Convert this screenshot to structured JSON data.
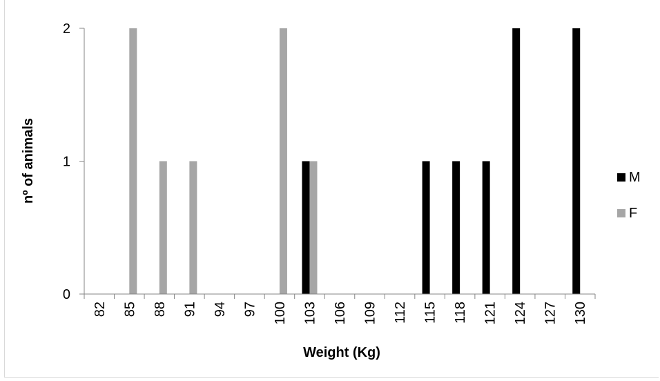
{
  "chart_data": {
    "type": "bar",
    "xlabel": "Weight (Kg)",
    "ylabel": "nº of animals",
    "categories": [
      "82",
      "85",
      "88",
      "91",
      "94",
      "97",
      "100",
      "103",
      "106",
      "109",
      "112",
      "115",
      "118",
      "121",
      "124",
      "127",
      "130"
    ],
    "series": [
      {
        "name": "M",
        "color": "#000000",
        "values": [
          0,
          0,
          0,
          0,
          0,
          0,
          0,
          1,
          0,
          0,
          0,
          1,
          1,
          1,
          2,
          0,
          2
        ]
      },
      {
        "name": "F",
        "color": "#a6a6a6",
        "values": [
          0,
          2,
          1,
          1,
          0,
          0,
          2,
          1,
          0,
          0,
          0,
          0,
          0,
          0,
          0,
          0,
          0
        ]
      }
    ],
    "yticks": [
      "0",
      "1",
      "2"
    ],
    "ylim": [
      0,
      2
    ],
    "grid": false,
    "legend_position": "right"
  }
}
